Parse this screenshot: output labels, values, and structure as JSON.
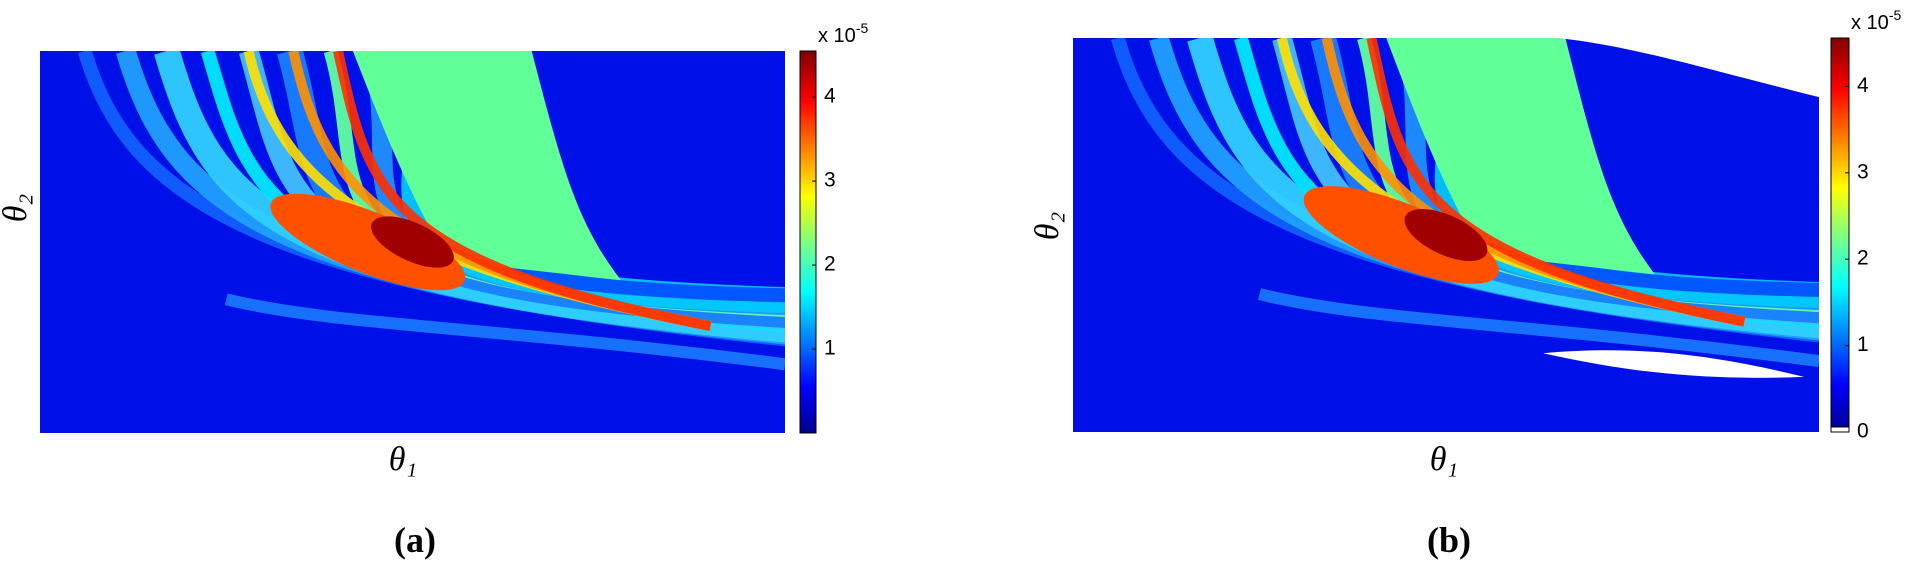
{
  "chart_data": [
    {
      "type": "heatmap",
      "xlabel": "θ₁",
      "ylabel": "θ₂",
      "panel_label": "(a)",
      "colorbar_label": "x 10",
      "colorbar_exponent": "-5",
      "clim": [
        0,
        4.55
      ],
      "cticks": [
        1,
        2,
        3,
        4
      ]
    },
    {
      "type": "heatmap",
      "xlabel": "θ₁",
      "ylabel": "θ₂",
      "panel_label": "(b)",
      "colorbar_label": "x 10",
      "colorbar_exponent": "-5",
      "clim": [
        0,
        4.56
      ],
      "cticks": [
        0,
        1,
        2,
        3,
        4
      ]
    }
  ]
}
